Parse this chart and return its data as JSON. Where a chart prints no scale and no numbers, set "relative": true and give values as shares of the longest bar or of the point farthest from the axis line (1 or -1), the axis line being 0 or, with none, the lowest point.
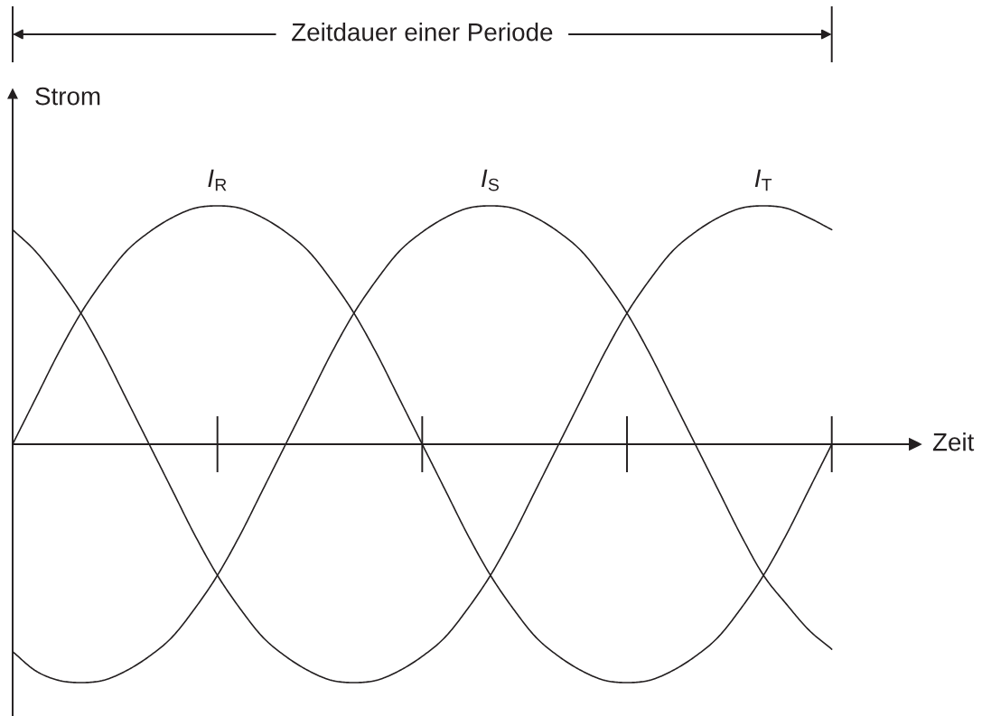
{
  "chart_data": {
    "type": "line",
    "relative": true,
    "xlabel": "Zeit",
    "ylabel": "Strom",
    "annotations": [
      "Zeitdauer einer Periode"
    ],
    "tick_labels": false,
    "categories": [
      null,
      null,
      null,
      null,
      null,
      null,
      null,
      null,
      null,
      null,
      null,
      null,
      null,
      null,
      null,
      null,
      null,
      null,
      null,
      null,
      null,
      null,
      null,
      null,
      null,
      null,
      null,
      null,
      null,
      null,
      null,
      null,
      null,
      null,
      null,
      null,
      null
    ],
    "series": [
      {
        "name": "I$_{R}$",
        "color": "#231f20",
        "values": [
          0,
          0.19,
          0.38,
          0.55,
          0.69,
          0.81,
          0.89,
          0.95,
          0.99,
          1,
          0.99,
          0.95,
          0.89,
          0.81,
          0.69,
          0.55,
          0.38,
          0.19,
          0,
          -0.19,
          -0.38,
          -0.55,
          -0.69,
          -0.81,
          -0.89,
          -0.95,
          -0.99,
          -1,
          -0.99,
          -0.95,
          -0.89,
          -0.81,
          -0.69,
          -0.55,
          -0.38,
          -0.19,
          0
        ]
      },
      {
        "name": "I$_{S}$",
        "color": "#231f20",
        "values": [
          -0.87,
          -0.95,
          -0.99,
          -1,
          -0.99,
          -0.95,
          -0.89,
          -0.81,
          -0.69,
          -0.55,
          -0.38,
          -0.19,
          0,
          0.19,
          0.38,
          0.55,
          0.69,
          0.81,
          0.89,
          0.95,
          0.99,
          1,
          0.99,
          0.95,
          0.89,
          0.81,
          0.69,
          0.55,
          0.38,
          0.19,
          0,
          -0.19,
          -0.38,
          -0.55,
          -0.67,
          -0.78,
          -0.86
        ]
      },
      {
        "name": "I$_{T}$",
        "color": "#231f20",
        "values": [
          0.9,
          0.81,
          0.69,
          0.55,
          0.38,
          0.19,
          0,
          -0.19,
          -0.38,
          -0.55,
          -0.69,
          -0.81,
          -0.89,
          -0.95,
          -0.99,
          -1,
          -0.99,
          -0.95,
          -0.89,
          -0.81,
          -0.69,
          -0.55,
          -0.38,
          -0.19,
          0,
          0.19,
          0.38,
          0.55,
          0.69,
          0.81,
          0.89,
          0.95,
          0.99,
          1,
          0.99,
          0.95,
          0.9
        ]
      }
    ]
  }
}
